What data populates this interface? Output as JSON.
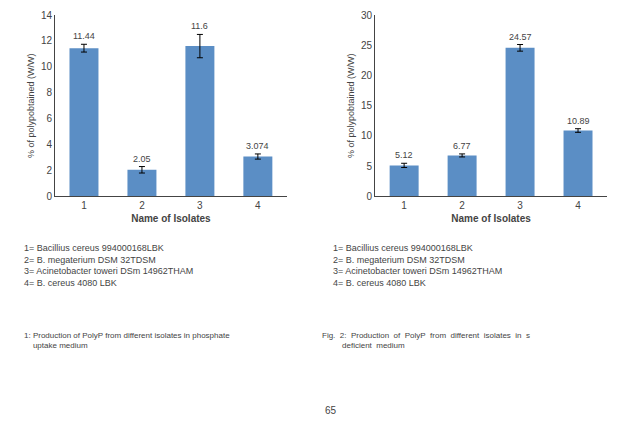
{
  "chart_data": [
    {
      "type": "bar",
      "categories": [
        "1",
        "2",
        "3",
        "4"
      ],
      "values": [
        11.44,
        2.05,
        11.6,
        3.074
      ],
      "errors": [
        0.3,
        0.25,
        0.9,
        0.2
      ],
      "value_labels": [
        "11.44",
        "2.05",
        "11.6",
        "3.074"
      ],
      "data_labels": true,
      "xlabel": "Name of Isolates",
      "ylabel": "% of polypobtained (W/W)",
      "ylim": [
        0,
        14
      ],
      "yticks": [
        0,
        2,
        4,
        6,
        8,
        10,
        12,
        14
      ],
      "color": "#5B8EC5",
      "grid": false,
      "annotations": [
        "1= Bacillius cereus 994000168LBK",
        "2= B. megaterium DSM 32TDSM",
        "3= Acinetobacter toweri DSm 14962THAM",
        "4= B. cereus 4080 LBK"
      ],
      "caption": "1: Production of PolyP from different isolates in phosphate\n    uptake medium"
    },
    {
      "type": "bar",
      "categories": [
        "1",
        "2",
        "3",
        "4"
      ],
      "values": [
        5.12,
        6.77,
        24.57,
        10.89
      ],
      "errors": [
        0.35,
        0.25,
        0.55,
        0.3
      ],
      "value_labels": [
        "5.12",
        "6.77",
        "24.57",
        "10.89"
      ],
      "data_labels": true,
      "xlabel": "Name of Isolates",
      "ylabel": "% of polypobtained (W/W)",
      "ylim": [
        0,
        30
      ],
      "yticks": [
        0,
        5,
        10,
        15,
        20,
        25,
        30
      ],
      "color": "#5B8EC5",
      "grid": false,
      "annotations": [
        "1= Bacillius cereus 994000168LBK",
        "2= B. megaterium DSM 32TDSM",
        "3= Acinetobacter toweri DSm 14962THAM",
        "4= B. cereus 4080 LBK"
      ],
      "caption": "Fig.  2:  Production  of  PolyP  from  different  isolates  in  s\n         deficient  medium"
    }
  ],
  "annotations": [
    "65"
  ]
}
